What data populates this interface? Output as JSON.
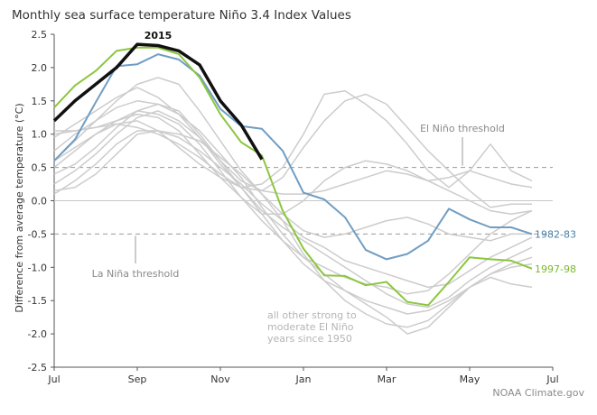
{
  "title": "Monthly sea surface temperature Niño 3.4 Index Values",
  "credit": "NOAA Climate.gov",
  "chart_data": {
    "type": "line",
    "ylabel": "Difference from average temperature (°C)",
    "xlabel": "",
    "x_ticks": [
      "Jul",
      "Sep",
      "Nov",
      "Jan",
      "Mar",
      "May",
      "Jul"
    ],
    "ylim": [
      -2.5,
      2.5
    ],
    "y_ticks": [
      2.5,
      2.0,
      1.5,
      1.0,
      0.5,
      0.0,
      -0.5,
      -1.0,
      -1.5,
      -2.0,
      -2.5
    ],
    "y_tick_labels": [
      "2.5",
      "2.0",
      "1.5",
      "1.0",
      "0.5",
      "0.0",
      "-0.5",
      "-1.0",
      "-1.5",
      "-2.0",
      "-2.5"
    ],
    "thresholds": [
      {
        "label": "El Niño threshold",
        "value": 0.5
      },
      {
        "label": "La Niña threshold",
        "value": -0.5
      }
    ],
    "annotation_other": [
      "all other strong to",
      "moderate El Niño",
      "years since 1950"
    ],
    "colors": {
      "y2015": "#111111",
      "y1982": "#6f9dc3",
      "y1997": "#8cc63f",
      "other": "#cccccc",
      "y1982_label": "#4a7fa8",
      "y1997_label": "#7ab82e",
      "threshold": "#999999"
    },
    "series": [
      {
        "name": "2015",
        "values": [
          1.2,
          1.5,
          1.75,
          2.0,
          2.35,
          2.33,
          2.25,
          2.04,
          1.5,
          1.14,
          0.62
        ]
      },
      {
        "name": "1982-83",
        "values": [
          0.6,
          0.92,
          1.48,
          2.02,
          2.05,
          2.2,
          2.12,
          1.88,
          1.38,
          1.12,
          1.08,
          0.75,
          0.12,
          0.02,
          -0.25,
          -0.74,
          -0.88,
          -0.8,
          -0.6,
          -0.12,
          -0.28,
          -0.4,
          -0.4,
          -0.5
        ]
      },
      {
        "name": "1997-98",
        "values": [
          1.4,
          1.73,
          1.95,
          2.25,
          2.3,
          2.3,
          2.2,
          1.85,
          1.3,
          0.88,
          0.68,
          -0.15,
          -0.72,
          -1.12,
          -1.13,
          -1.27,
          -1.22,
          -1.52,
          -1.57,
          -1.22,
          -0.85,
          -0.88,
          -0.9,
          -1.02
        ]
      },
      {
        "values": [
          0.1,
          0.3,
          0.55,
          0.85,
          1.05,
          1.05,
          0.95,
          0.75,
          0.5,
          0.25,
          -0.05,
          -0.3,
          -0.55,
          -0.7,
          -0.9,
          -1.0,
          -1.1,
          -1.2,
          -1.3,
          -1.25,
          -1.05,
          -0.85,
          -0.7,
          -0.55
        ]
      },
      {
        "values": [
          0.5,
          0.75,
          1.0,
          1.2,
          1.35,
          1.3,
          1.15,
          0.85,
          0.45,
          0.05,
          -0.3,
          -0.6,
          -0.85,
          -1.0,
          -1.15,
          -1.25,
          -1.3,
          -1.4,
          -1.35,
          -1.1,
          -0.8,
          -0.5,
          -0.3,
          -0.15
        ]
      },
      {
        "values": [
          0.25,
          0.45,
          0.7,
          1.0,
          1.25,
          1.35,
          1.2,
          0.95,
          0.6,
          0.2,
          -0.15,
          -0.4,
          -0.6,
          -0.8,
          -1.0,
          -1.2,
          -1.4,
          -1.55,
          -1.6,
          -1.45,
          -1.2,
          -1.0,
          -0.85,
          -0.7
        ]
      },
      {
        "values": [
          0.75,
          1.0,
          1.2,
          1.4,
          1.5,
          1.45,
          1.3,
          1.05,
          0.7,
          0.35,
          -0.1,
          -0.5,
          -0.85,
          -1.1,
          -1.35,
          -1.55,
          -1.75,
          -2.0,
          -1.9,
          -1.6,
          -1.3,
          -1.1,
          -1.0,
          -0.95
        ]
      },
      {
        "values": [
          0.15,
          0.2,
          0.4,
          0.7,
          1.0,
          1.05,
          1.0,
          0.9,
          0.65,
          0.4,
          0.1,
          -0.3,
          -0.8,
          -1.2,
          -1.5,
          -1.7,
          -1.85,
          -1.9,
          -1.8,
          -1.55,
          -1.3,
          -1.1,
          -0.95,
          -0.85
        ]
      },
      {
        "values": [
          0.95,
          1.15,
          1.35,
          1.55,
          1.7,
          1.55,
          1.3,
          0.95,
          0.55,
          0.2,
          -0.2,
          -0.6,
          -0.95,
          -1.2,
          -1.35,
          -1.5,
          -1.6,
          -1.7,
          -1.65,
          -1.5,
          -1.3,
          -1.15,
          -1.25,
          -1.3
        ]
      },
      {
        "values": [
          0.6,
          0.8,
          1.0,
          1.15,
          1.2,
          1.05,
          0.8,
          0.55,
          0.35,
          0.2,
          0.15,
          0.35,
          0.8,
          1.2,
          1.5,
          1.6,
          1.45,
          1.1,
          0.75,
          0.45,
          0.15,
          -0.1,
          -0.05,
          -0.05
        ]
      },
      {
        "values": [
          1.0,
          1.05,
          1.1,
          1.15,
          1.1,
          1.0,
          0.85,
          0.65,
          0.4,
          0.2,
          0.25,
          0.5,
          1.0,
          1.6,
          1.65,
          1.45,
          1.2,
          0.85,
          0.45,
          0.2,
          0.45,
          0.85,
          0.45,
          0.3
        ]
      },
      {
        "values": [
          0.6,
          0.9,
          1.2,
          1.5,
          1.75,
          1.85,
          1.75,
          1.35,
          0.9,
          0.45,
          0.1,
          -0.2,
          -0.45,
          -0.55,
          -0.5,
          -0.4,
          -0.3,
          -0.25,
          -0.35,
          -0.5,
          -0.55,
          -0.6,
          -0.5,
          -0.5
        ]
      },
      {
        "values": [
          0.4,
          0.55,
          0.8,
          1.1,
          1.35,
          1.45,
          1.35,
          1.0,
          0.6,
          0.3,
          0.15,
          0.1,
          0.1,
          0.15,
          0.25,
          0.35,
          0.45,
          0.4,
          0.3,
          0.35,
          0.45,
          0.35,
          0.25,
          0.2
        ]
      },
      {
        "values": [
          1.05,
          1.05,
          1.1,
          1.2,
          1.3,
          1.25,
          1.05,
          0.7,
          0.35,
          0.05,
          -0.2,
          -0.2,
          0.0,
          0.3,
          0.5,
          0.6,
          0.55,
          0.45,
          0.3,
          0.15,
          0.0,
          -0.15,
          -0.2,
          -0.15
        ]
      }
    ]
  }
}
